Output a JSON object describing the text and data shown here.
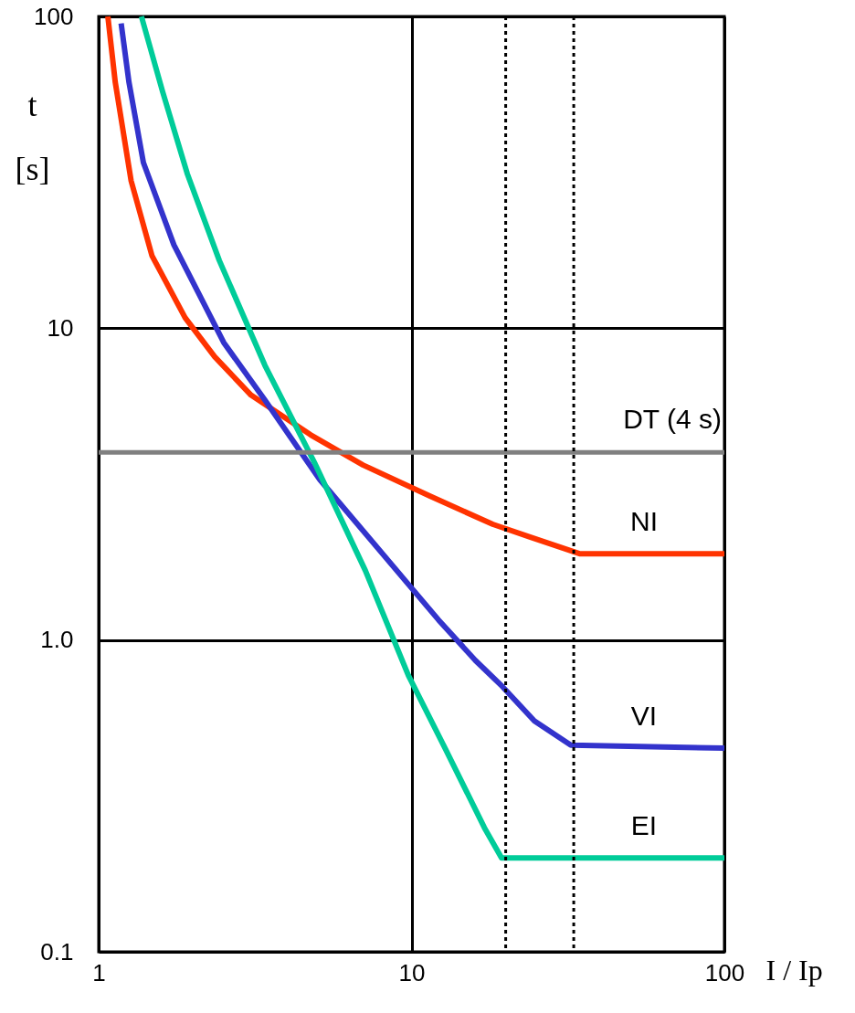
{
  "chart_data": {
    "type": "line",
    "xlabel": "I / Ip",
    "ylabel": "t [s]",
    "log": "xy",
    "grid": true,
    "marker": "none",
    "line_style": "solid",
    "xlim": [
      1,
      100
    ],
    "xticks": [
      1,
      10,
      100
    ],
    "ylim": [
      0.1,
      100
    ],
    "yticks": [
      0.1,
      {
        "value": 1,
        "label": "1.0"
      },
      10,
      100
    ],
    "series": [
      {
        "name": "NI",
        "color": "#ff3300",
        "x": [
          1.07,
          1.13,
          1.27,
          1.48,
          1.89,
          2.35,
          3.07,
          4.76,
          7.0,
          11.4,
          18.2,
          23.9,
          34.6,
          100
        ],
        "values": [
          100,
          61.5,
          29.7,
          17.1,
          10.8,
          8.1,
          6.1,
          4.55,
          3.64,
          2.9,
          2.35,
          2.14,
          1.89,
          1.89
        ]
      },
      {
        "name": "VI",
        "color": "#3333cc",
        "x": [
          1.18,
          1.25,
          1.39,
          1.74,
          2.51,
          3.4,
          5.09,
          9.77,
          12.2,
          16.0,
          19.5,
          24.7,
          32.3,
          100
        ],
        "values": [
          95,
          61.5,
          34,
          18.5,
          9.0,
          5.88,
          3.27,
          1.51,
          1.16,
          0.86,
          0.71,
          0.55,
          0.46,
          0.45
        ]
      },
      {
        "name": "EI",
        "color": "#00cc99",
        "x": [
          1.37,
          1.6,
          1.92,
          2.43,
          3.4,
          4.92,
          7.12,
          9.77,
          12.8,
          17.1,
          19.4,
          100
        ],
        "values": [
          100,
          57.5,
          31.3,
          16.5,
          7.6,
          3.67,
          1.67,
          0.77,
          0.45,
          0.25,
          0.2,
          0.2
        ]
      }
    ],
    "ref_lines": [
      {
        "axis": "y",
        "value": 4,
        "label": "DT (4 s)",
        "color": "#808080",
        "line_style": "solid"
      },
      {
        "axis": "x",
        "value": 20,
        "color": "#000000",
        "line_style": "dotted"
      },
      {
        "axis": "x",
        "value": 33,
        "color": "#000000",
        "line_style": "dotted"
      }
    ]
  }
}
